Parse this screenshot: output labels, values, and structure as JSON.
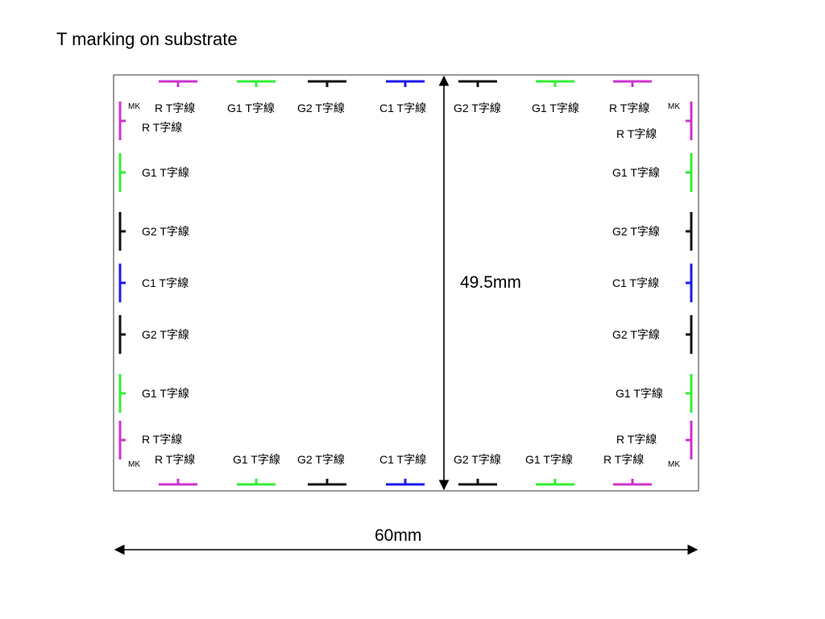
{
  "title": "T marking on substrate",
  "colors": {
    "R": "#cc33cc",
    "G1": "#33ee33",
    "G2": "#111111",
    "C1": "#1a1aee"
  },
  "labels": {
    "R": "R  T字線",
    "G1": "G1 T字線",
    "G2": "G2 T字線",
    "C1": "C1 T字線",
    "MK": "MK"
  },
  "dimensions": {
    "height": "49.5mm",
    "width": "60mm"
  },
  "top_marks": [
    "R",
    "G1",
    "G2",
    "C1",
    "G2",
    "G1",
    "R"
  ],
  "bottom_marks": [
    "R",
    "G1",
    "G2",
    "C1",
    "G2",
    "G1",
    "R"
  ],
  "left_marks": [
    "R",
    "G1",
    "G2",
    "C1",
    "G2",
    "G1",
    "R"
  ],
  "right_marks": [
    "R",
    "G1",
    "G2",
    "C1",
    "G2",
    "G1",
    "R"
  ]
}
